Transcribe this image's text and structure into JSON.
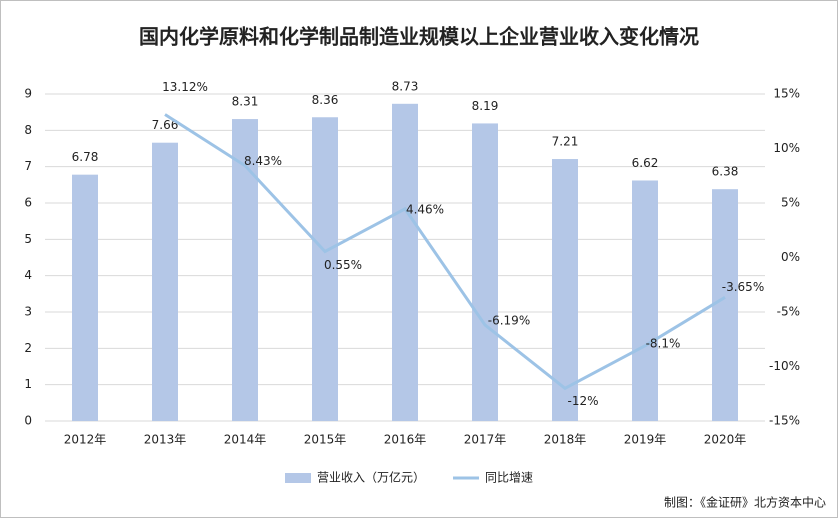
{
  "chart_data": {
    "type": "bar",
    "title": "国内化学原料和化学制品制造业规模以上企业营业收入变化情况",
    "categories": [
      "2012年",
      "2013年",
      "2014年",
      "2015年",
      "2016年",
      "2017年",
      "2018年",
      "2019年",
      "2020年"
    ],
    "series": [
      {
        "name": "营业收入（万亿元）",
        "type": "bar",
        "color": "#b4c7e7",
        "axis": "y",
        "values": [
          6.78,
          7.66,
          8.31,
          8.36,
          8.73,
          8.19,
          7.21,
          6.62,
          6.38
        ]
      },
      {
        "name": "同比增速",
        "type": "line",
        "color": "#9dc3e6",
        "axis": "y2",
        "values": [
          null,
          13.12,
          8.43,
          0.55,
          4.46,
          -6.19,
          -12,
          -8.1,
          -3.65
        ],
        "value_labels": [
          null,
          "13.12%",
          "8.43%",
          "0.55%",
          "4.46%",
          "-6.19%",
          "-12%",
          "-8.1%",
          "-3.65%"
        ]
      }
    ],
    "ylim": [
      0,
      9
    ],
    "yticks": [
      0,
      1,
      2,
      3,
      4,
      5,
      6,
      7,
      8,
      9
    ],
    "y2lim": [
      -15,
      15
    ],
    "y2ticks": [
      {
        "value": -15,
        "label": "-15%"
      },
      {
        "value": -10,
        "label": "-10%"
      },
      {
        "value": -5,
        "label": "-5%"
      },
      {
        "value": 0,
        "label": "0%"
      },
      {
        "value": 5,
        "label": "5%"
      },
      {
        "value": 10,
        "label": "10%"
      },
      {
        "value": 15,
        "label": "15%"
      }
    ],
    "grid": true,
    "legend": "bottom",
    "source": "制图：《金证研》北方资本中心"
  }
}
